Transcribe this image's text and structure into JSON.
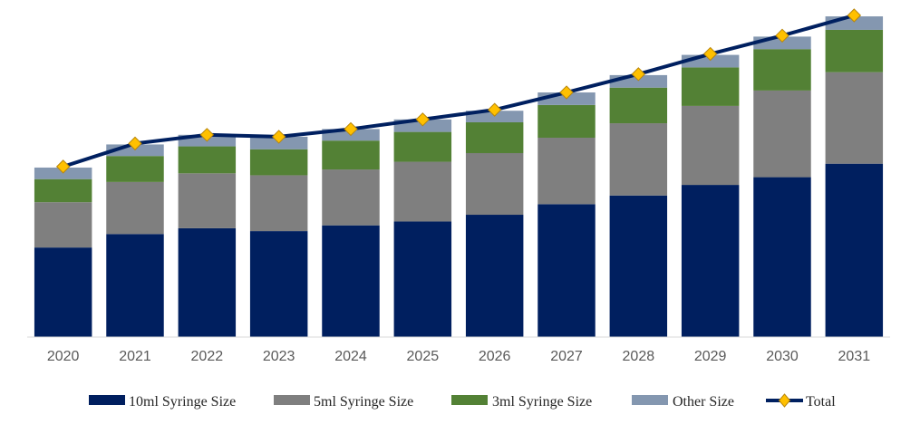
{
  "chart_data": {
    "type": "bar",
    "stacked": true,
    "title": "",
    "xlabel": "",
    "ylabel": "",
    "categories": [
      "2020",
      "2021",
      "2022",
      "2023",
      "2024",
      "2025",
      "2026",
      "2027",
      "2028",
      "2029",
      "2030",
      "2031"
    ],
    "series": [
      {
        "name": "10ml Syringe Size",
        "color": "#001F5F",
        "values": [
          93,
          107,
          113,
          110,
          116,
          120,
          127,
          138,
          147,
          158,
          166,
          180
        ]
      },
      {
        "name": "5ml Syringe Size",
        "color": "#7F7F7F",
        "values": [
          47,
          54,
          57,
          58,
          58,
          62,
          64,
          69,
          75,
          82,
          90,
          95
        ]
      },
      {
        "name": "3ml Syringe Size",
        "color": "#538135",
        "values": [
          24,
          27,
          28,
          27,
          30,
          31,
          32,
          34,
          37,
          40,
          43,
          44
        ]
      },
      {
        "name": "Other Size",
        "color": "#8497B0",
        "values": [
          12,
          12,
          12,
          13,
          12,
          13,
          12,
          13,
          13,
          13,
          13,
          14
        ]
      }
    ],
    "line": {
      "name": "Total",
      "color": "#002060",
      "marker_color": "#FFC000",
      "values": [
        177,
        201,
        210,
        208,
        216,
        226,
        236,
        254,
        273,
        294,
        313,
        334
      ]
    },
    "ylim": [
      0,
      350
    ],
    "grid": false,
    "legend_position": "bottom"
  }
}
